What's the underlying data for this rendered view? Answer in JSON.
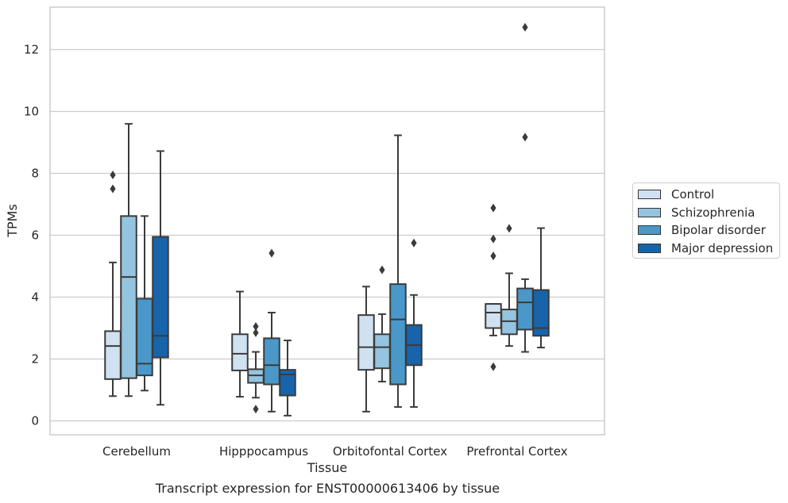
{
  "caption": "Transcript expression for ENST00000613406 by tissue",
  "chart_data": {
    "type": "box",
    "xlabel": "Tissue",
    "ylabel": "TPMs",
    "ylim": [
      -0.4,
      13.4
    ],
    "yticks": [
      0,
      2,
      4,
      6,
      8,
      10,
      12
    ],
    "grid": "horizontal",
    "legend_position": "right",
    "categories": [
      "Cerebellum",
      "Hipppocampus",
      "Orbitofontal Cortex",
      "Prefrontal Cortex"
    ],
    "series": [
      {
        "name": "Control",
        "color": "#d0e1f2",
        "boxes": [
          {
            "whisker_low": 0.8,
            "q1": 1.35,
            "median": 2.42,
            "q3": 2.9,
            "whisker_high": 5.12,
            "outliers": [
              7.5,
              7.95
            ]
          },
          {
            "whisker_low": 0.78,
            "q1": 1.63,
            "median": 2.17,
            "q3": 2.8,
            "whisker_high": 4.18,
            "outliers": []
          },
          {
            "whisker_low": 0.3,
            "q1": 1.65,
            "median": 2.38,
            "q3": 3.42,
            "whisker_high": 4.34,
            "outliers": []
          },
          {
            "whisker_low": 2.76,
            "q1": 3.0,
            "median": 3.5,
            "q3": 3.78,
            "whisker_high": 3.78,
            "outliers": [
              1.75,
              5.33,
              5.88,
              6.88
            ]
          }
        ]
      },
      {
        "name": "Schizophrenia",
        "color": "#94c4df",
        "boxes": [
          {
            "whisker_low": 0.8,
            "q1": 1.38,
            "median": 4.65,
            "q3": 6.62,
            "whisker_high": 9.6,
            "outliers": []
          },
          {
            "whisker_low": 0.75,
            "q1": 1.23,
            "median": 1.47,
            "q3": 1.67,
            "whisker_high": 2.23,
            "outliers": [
              0.38,
              2.85,
              3.05
            ]
          },
          {
            "whisker_low": 1.27,
            "q1": 1.7,
            "median": 2.38,
            "q3": 2.8,
            "whisker_high": 3.45,
            "outliers": [
              4.88
            ]
          },
          {
            "whisker_low": 2.42,
            "q1": 2.8,
            "median": 3.22,
            "q3": 3.6,
            "whisker_high": 4.77,
            "outliers": [
              6.22
            ]
          }
        ]
      },
      {
        "name": "Bipolar disorder",
        "color": "#4a98c9",
        "boxes": [
          {
            "whisker_low": 0.98,
            "q1": 1.47,
            "median": 1.85,
            "q3": 3.95,
            "whisker_high": 6.62,
            "outliers": []
          },
          {
            "whisker_low": 0.3,
            "q1": 1.18,
            "median": 1.8,
            "q3": 2.67,
            "whisker_high": 3.5,
            "outliers": [
              5.42
            ]
          },
          {
            "whisker_low": 0.45,
            "q1": 1.18,
            "median": 3.28,
            "q3": 4.42,
            "whisker_high": 9.23,
            "outliers": []
          },
          {
            "whisker_low": 2.23,
            "q1": 2.95,
            "median": 3.83,
            "q3": 4.28,
            "whisker_high": 4.58,
            "outliers": [
              9.17,
              12.72
            ]
          }
        ]
      },
      {
        "name": "Major depression",
        "color": "#1764ab",
        "boxes": [
          {
            "whisker_low": 0.52,
            "q1": 2.05,
            "median": 2.75,
            "q3": 5.95,
            "whisker_high": 8.72,
            "outliers": []
          },
          {
            "whisker_low": 0.17,
            "q1": 0.82,
            "median": 1.5,
            "q3": 1.65,
            "whisker_high": 2.6,
            "outliers": []
          },
          {
            "whisker_low": 0.45,
            "q1": 1.8,
            "median": 2.45,
            "q3": 3.1,
            "whisker_high": 4.07,
            "outliers": [
              5.75
            ]
          },
          {
            "whisker_low": 2.37,
            "q1": 2.75,
            "median": 3.0,
            "q3": 4.23,
            "whisker_high": 6.23,
            "outliers": []
          }
        ]
      }
    ]
  }
}
